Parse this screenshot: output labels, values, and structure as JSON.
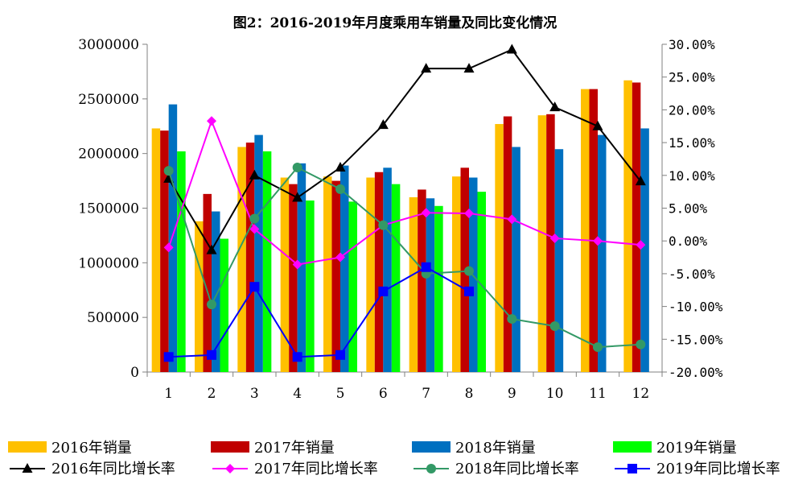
{
  "chart_data": {
    "type": "bar",
    "title": "图2：2016-2019年月度乘用车销量及同比变化情况",
    "categories": [
      "1",
      "2",
      "3",
      "4",
      "5",
      "6",
      "7",
      "8",
      "9",
      "10",
      "11",
      "12"
    ],
    "y_left": {
      "min": 0,
      "max": 3000000,
      "ticks": [
        "0",
        "500000",
        "1000000",
        "1500000",
        "2000000",
        "2500000",
        "3000000"
      ]
    },
    "y_right": {
      "min": -20,
      "max": 30,
      "ticks": [
        "-20.00%",
        "-15.00%",
        "-10.00%",
        "-5.00%",
        "0.00%",
        "5.00%",
        "10.00%",
        "15.00%",
        "20.00%",
        "25.00%",
        "30.00%"
      ]
    },
    "bar_series": [
      {
        "name": "2016年销量",
        "color": "#FFC000",
        "values": [
          2230000,
          1380000,
          2060000,
          1780000,
          1790000,
          1780000,
          1600000,
          1790000,
          2270000,
          2350000,
          2590000,
          2670000
        ]
      },
      {
        "name": "2017年销量",
        "color": "#C00000",
        "values": [
          2210000,
          1630000,
          2100000,
          1720000,
          1750000,
          1830000,
          1670000,
          1870000,
          2340000,
          2360000,
          2590000,
          2650000
        ]
      },
      {
        "name": "2018年销量",
        "color": "#0070C0",
        "values": [
          2450000,
          1470000,
          2170000,
          1910000,
          1890000,
          1870000,
          1590000,
          1780000,
          2060000,
          2040000,
          2170000,
          2230000
        ]
      },
      {
        "name": "2019年销量",
        "color": "#00FF00",
        "values": [
          2020000,
          1220000,
          2020000,
          1570000,
          1560000,
          1720000,
          1520000,
          1650000,
          null,
          null,
          null,
          null
        ]
      }
    ],
    "line_series": [
      {
        "name": "2016年同比增长率",
        "color": "#000000",
        "marker": "triangle",
        "values": [
          9.5,
          -1.4,
          10.0,
          6.6,
          11.2,
          17.7,
          26.3,
          26.3,
          29.2,
          20.4,
          17.5,
          9.1
        ]
      },
      {
        "name": "2017年同比增长率",
        "color": "#FF00FF",
        "marker": "diamond",
        "values": [
          -1.0,
          18.3,
          1.8,
          -3.6,
          -2.5,
          2.4,
          4.3,
          4.2,
          3.3,
          0.4,
          0.0,
          -0.6
        ]
      },
      {
        "name": "2018年同比增长率",
        "color": "#339966",
        "marker": "circle",
        "values": [
          10.7,
          -9.7,
          3.4,
          11.2,
          7.9,
          2.4,
          -5.0,
          -4.6,
          -11.9,
          -13.0,
          -16.2,
          -15.8
        ]
      },
      {
        "name": "2019年同比增长率",
        "color": "#0000FF",
        "marker": "square",
        "values": [
          -17.7,
          -17.4,
          -7.0,
          -17.7,
          -17.4,
          -7.7,
          -4.0,
          -7.7,
          null,
          null,
          null,
          null
        ]
      }
    ]
  }
}
